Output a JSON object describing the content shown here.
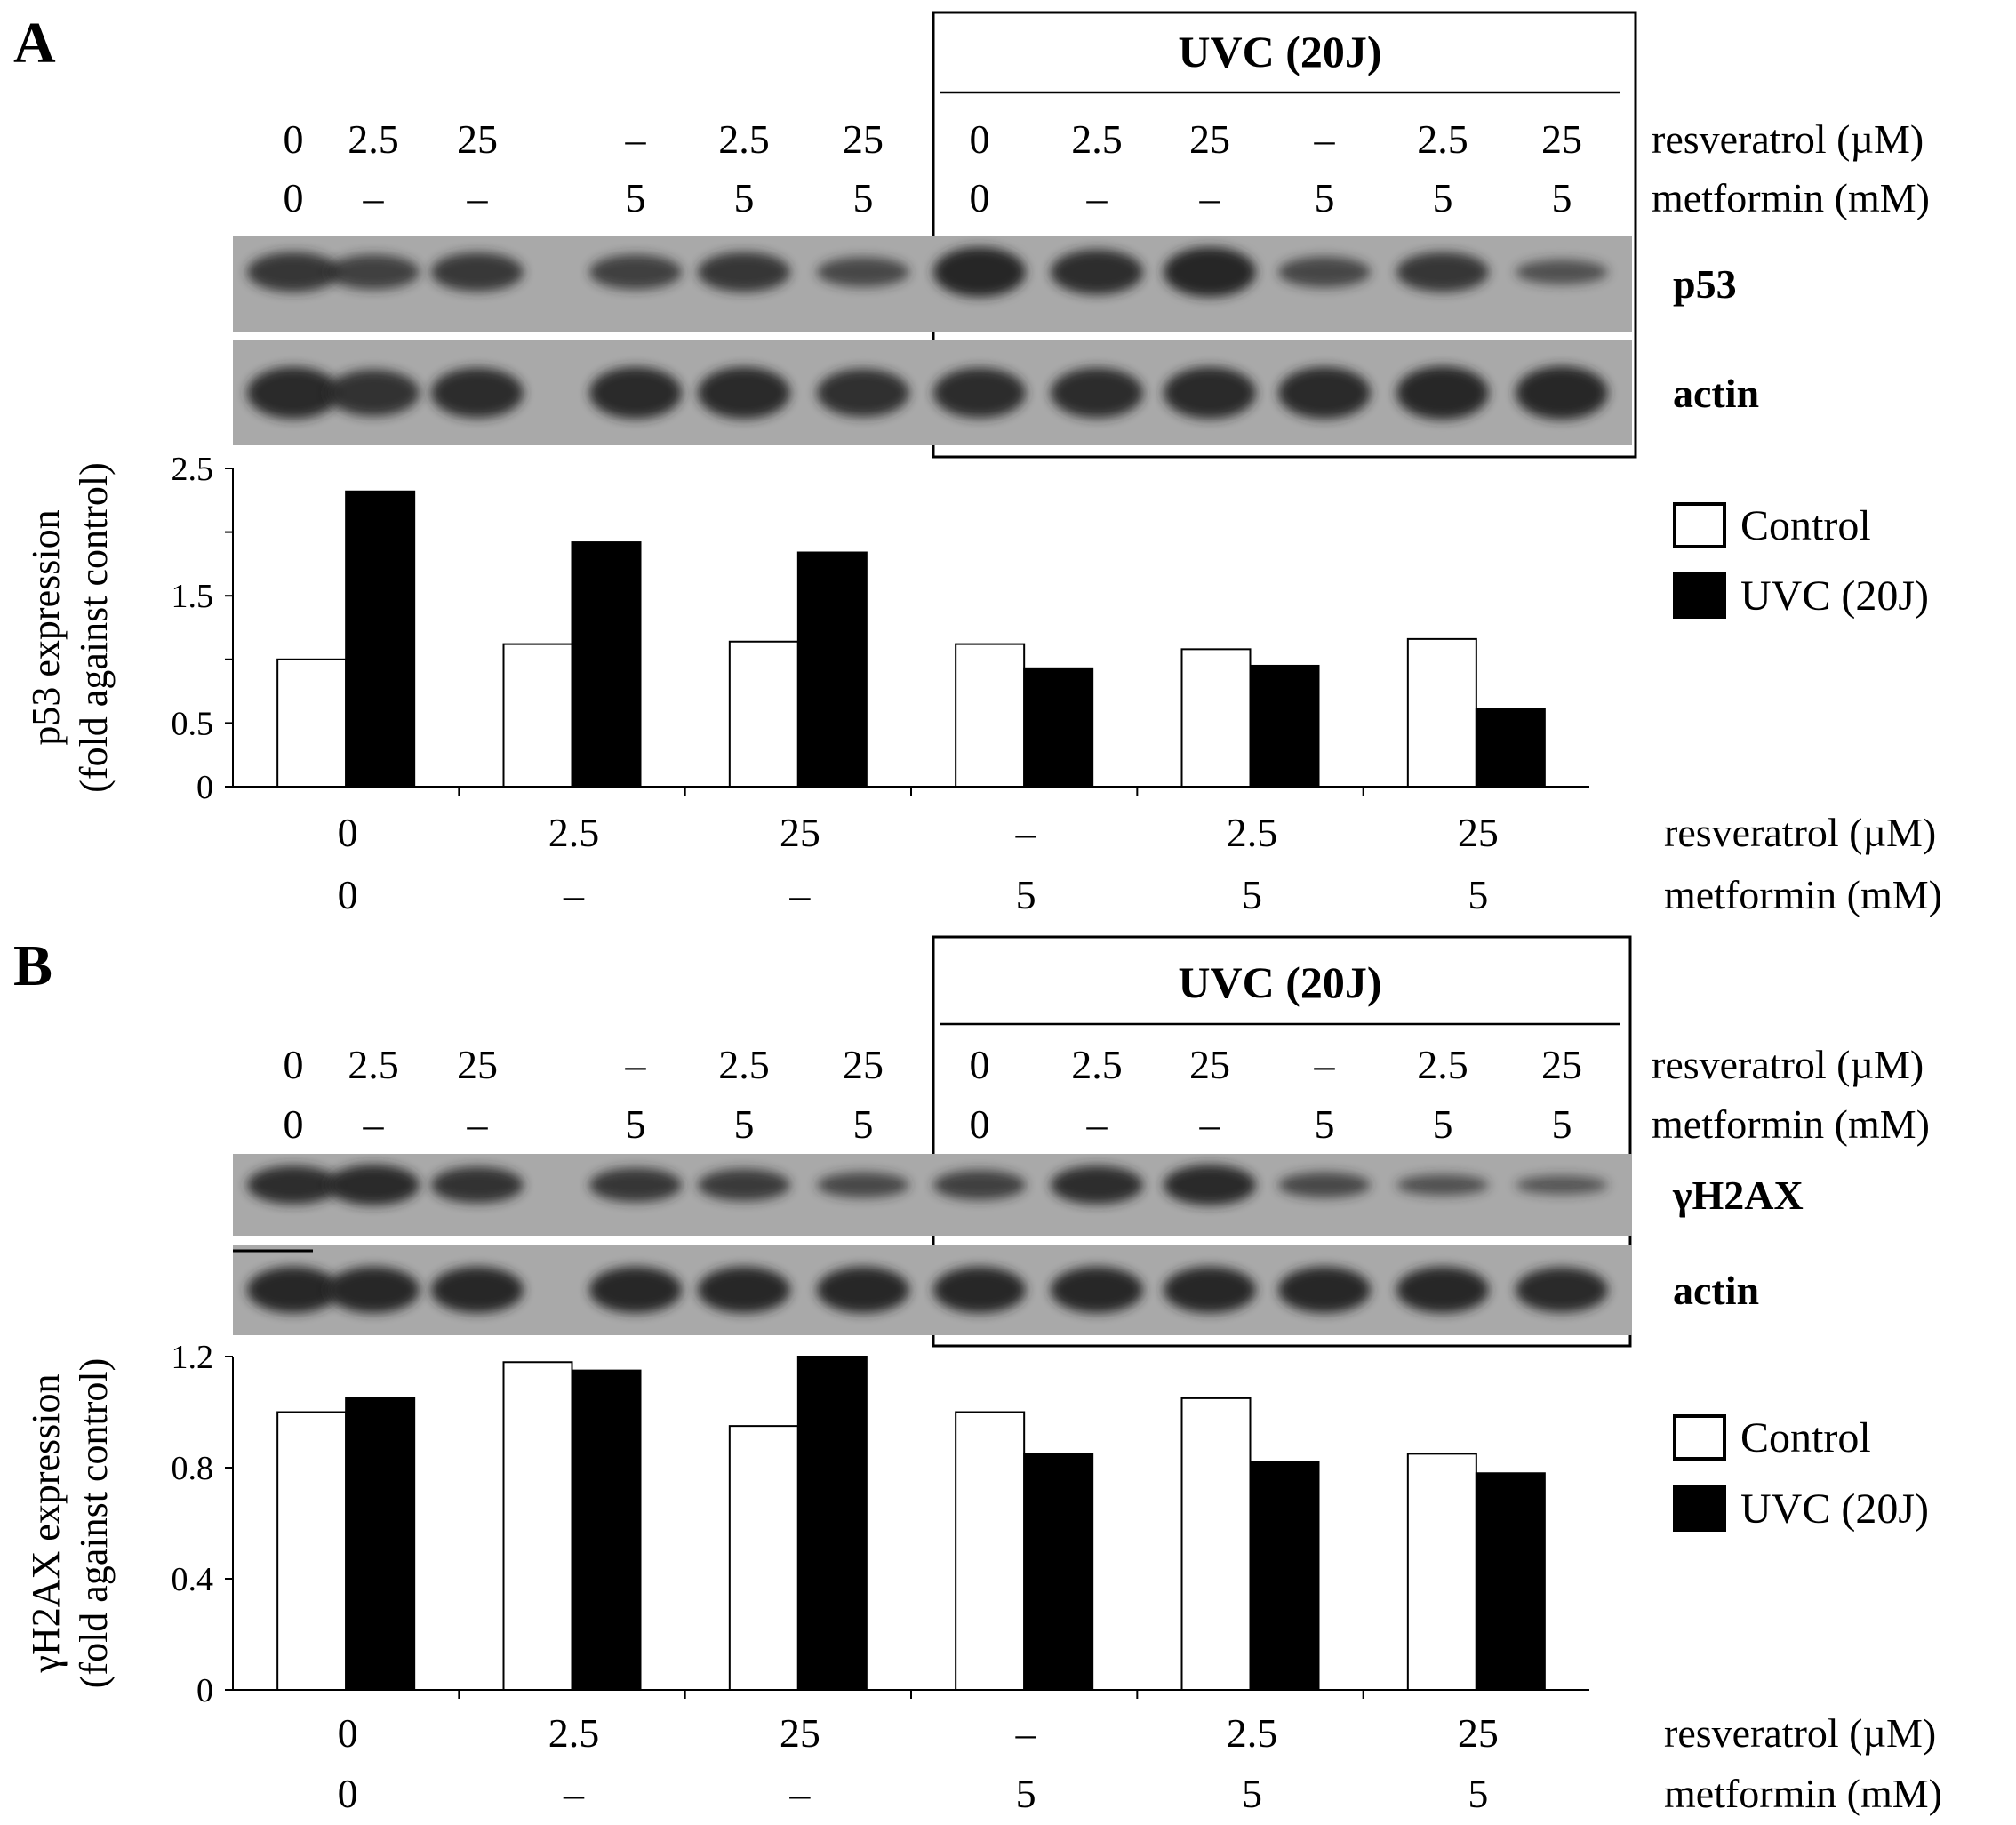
{
  "colors": {
    "control_fill": "#ffffff",
    "uvc_fill": "#000000",
    "blot_background": "#a9a9a9",
    "band": "#262626"
  },
  "panels": [
    {
      "letter": "A",
      "uvc_box_title": "UVC (20J)",
      "lane_rows": [
        {
          "values": [
            "0",
            "2.5",
            "25",
            "–",
            "2.5",
            "25",
            "0",
            "2.5",
            "25",
            "–",
            "2.5",
            "25"
          ],
          "label": "resveratrol (µM)"
        },
        {
          "values": [
            "0",
            "–",
            "–",
            "5",
            "5",
            "5",
            "0",
            "–",
            "–",
            "5",
            "5",
            "5"
          ],
          "label": "metformin (mM)"
        }
      ],
      "blots": [
        {
          "label": "p53",
          "band_intensity": [
            0.8,
            0.7,
            0.78,
            0.7,
            0.8,
            0.6,
            1.0,
            0.9,
            1.0,
            0.62,
            0.8,
            0.5
          ]
        },
        {
          "label": "actin",
          "band_intensity": [
            0.95,
            0.85,
            0.92,
            0.95,
            0.95,
            0.88,
            0.92,
            0.92,
            0.95,
            0.95,
            0.98,
            0.98
          ]
        }
      ],
      "x_rows": [
        {
          "values": [
            "0",
            "2.5",
            "25",
            "–",
            "2.5",
            "25"
          ],
          "label": "resveratrol (µM)"
        },
        {
          "values": [
            "0",
            "–",
            "–",
            "5",
            "5",
            "5"
          ],
          "label": "metformin (mM)"
        }
      ],
      "legend": [
        "Control",
        "UVC (20J)"
      ]
    },
    {
      "letter": "B",
      "uvc_box_title": "UVC (20J)",
      "lane_rows": [
        {
          "values": [
            "0",
            "2.5",
            "25",
            "–",
            "2.5",
            "25",
            "0",
            "2.5",
            "25",
            "–",
            "2.5",
            "25"
          ],
          "label": "resveratrol (µM)"
        },
        {
          "values": [
            "0",
            "–",
            "–",
            "5",
            "5",
            "5",
            "0",
            "–",
            "–",
            "5",
            "5",
            "5"
          ],
          "label": "metformin (mM)"
        }
      ],
      "blots": [
        {
          "label": "γH2AX",
          "band_intensity": [
            0.9,
            0.95,
            0.85,
            0.8,
            0.75,
            0.6,
            0.7,
            0.9,
            0.95,
            0.6,
            0.5,
            0.45
          ]
        },
        {
          "label": "actin",
          "band_intensity": [
            0.98,
            0.98,
            0.98,
            0.98,
            0.98,
            0.98,
            0.98,
            0.98,
            0.98,
            0.98,
            0.98,
            0.95
          ]
        }
      ],
      "x_rows": [
        {
          "values": [
            "0",
            "2.5",
            "25",
            "–",
            "2.5",
            "25"
          ],
          "label": "resveratrol (µM)"
        },
        {
          "values": [
            "0",
            "–",
            "–",
            "5",
            "5",
            "5"
          ],
          "label": "metformin (mM)"
        }
      ],
      "legend": [
        "Control",
        "UVC (20J)"
      ]
    }
  ],
  "chart_data": [
    {
      "type": "bar",
      "categories": [
        "0 / 0",
        "2.5 / –",
        "25 / –",
        "– / 5",
        "2.5 / 5",
        "25 / 5"
      ],
      "series": [
        {
          "name": "Control",
          "values": [
            1.0,
            1.12,
            1.14,
            1.12,
            1.08,
            1.16
          ]
        },
        {
          "name": "UVC (20J)",
          "values": [
            2.32,
            1.92,
            1.84,
            0.93,
            0.95,
            0.61
          ]
        }
      ],
      "ylabel_lines": [
        "p53 expression",
        "(fold against control)"
      ],
      "ylim": [
        0,
        2.5
      ],
      "yticks": [
        0,
        0.5,
        1.5,
        2.5
      ],
      "ytick_labels": [
        "0",
        "0.5",
        "1.5",
        "2.5"
      ],
      "grid": false,
      "legend_position": "right"
    },
    {
      "type": "bar",
      "categories": [
        "0 / 0",
        "2.5 / –",
        "25 / –",
        "– / 5",
        "2.5 / 5",
        "25 / 5"
      ],
      "series": [
        {
          "name": "Control",
          "values": [
            1.0,
            1.18,
            0.95,
            1.0,
            1.05,
            0.85
          ]
        },
        {
          "name": "UVC (20J)",
          "values": [
            1.05,
            1.15,
            1.2,
            0.85,
            0.82,
            0.78
          ]
        }
      ],
      "ylabel_lines": [
        "γH2AX expression",
        "(fold against control)"
      ],
      "ylim": [
        0,
        1.2
      ],
      "yticks": [
        0,
        0.4,
        0.8,
        1.2
      ],
      "ytick_labels": [
        "0",
        "0.4",
        "0.8",
        "1.2"
      ],
      "grid": false,
      "legend_position": "right"
    }
  ]
}
